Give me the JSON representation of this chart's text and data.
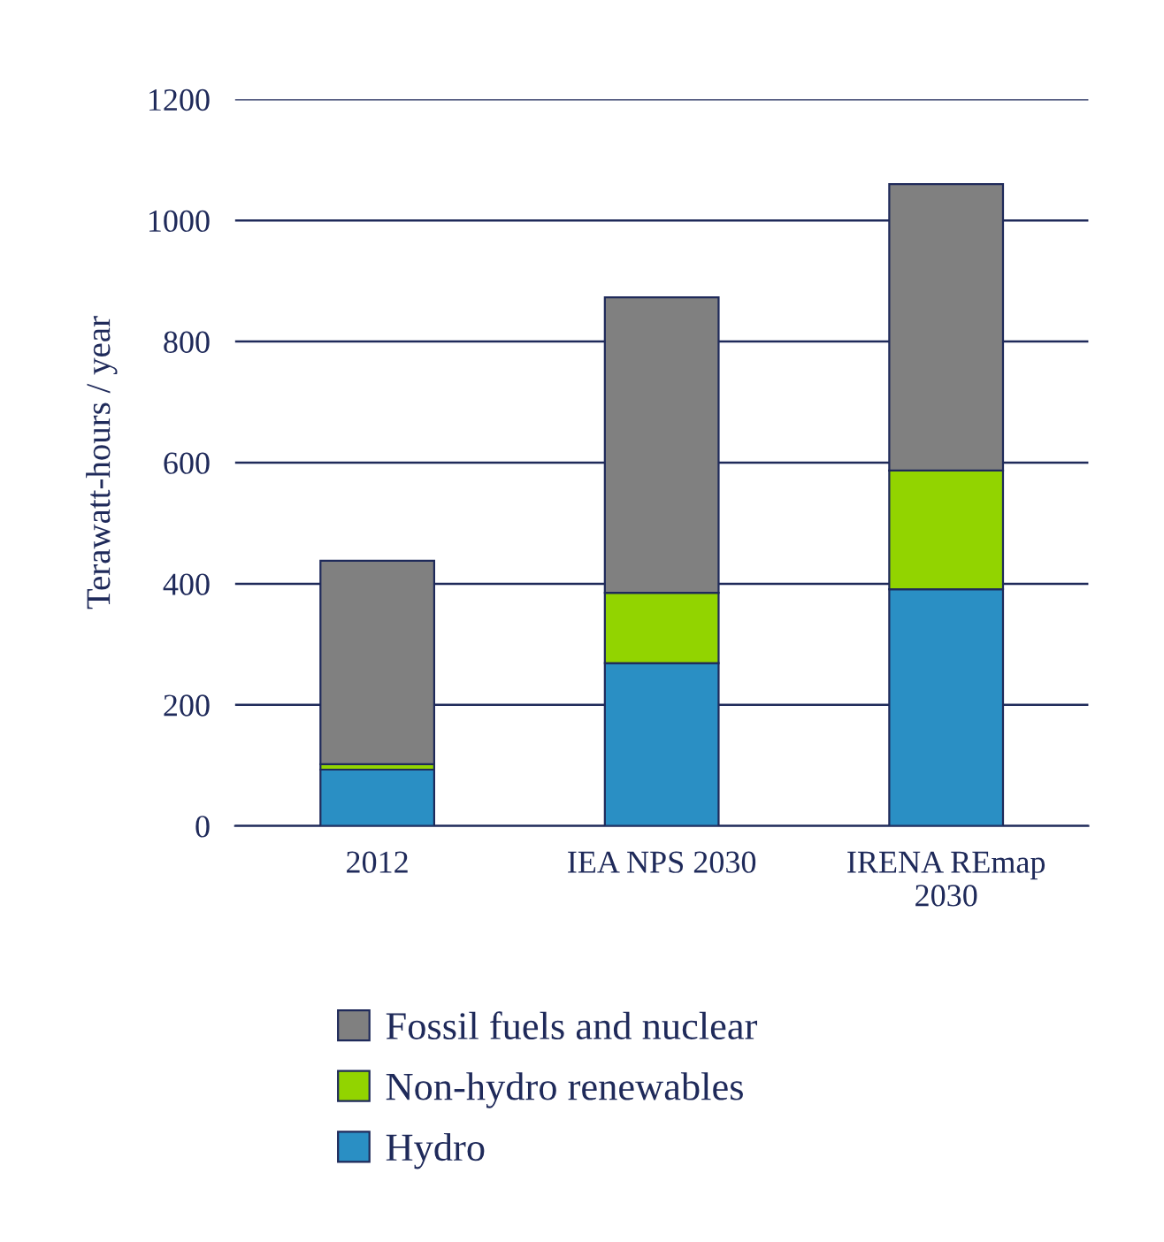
{
  "chart_data": {
    "type": "bar",
    "stacked": true,
    "ylabel": "Terawatt-hours / year",
    "categories": [
      "2012",
      "IEA NPS 2030",
      "IRENA REmap\n2030"
    ],
    "series": [
      {
        "name": "Hydro",
        "color": "#2a8fc4",
        "values": [
          93,
          269,
          391
        ]
      },
      {
        "name": "Non-hydro renewables",
        "color": "#92d400",
        "values": [
          9,
          116,
          196
        ]
      },
      {
        "name": "Fossil fuels and nuclear",
        "color": "#808080",
        "values": [
          336,
          488,
          473
        ]
      }
    ],
    "ylim": [
      0,
      1200
    ],
    "yticks": [
      0,
      200,
      400,
      600,
      800,
      1000,
      1200
    ],
    "grid": "y",
    "legend": "bottom"
  }
}
